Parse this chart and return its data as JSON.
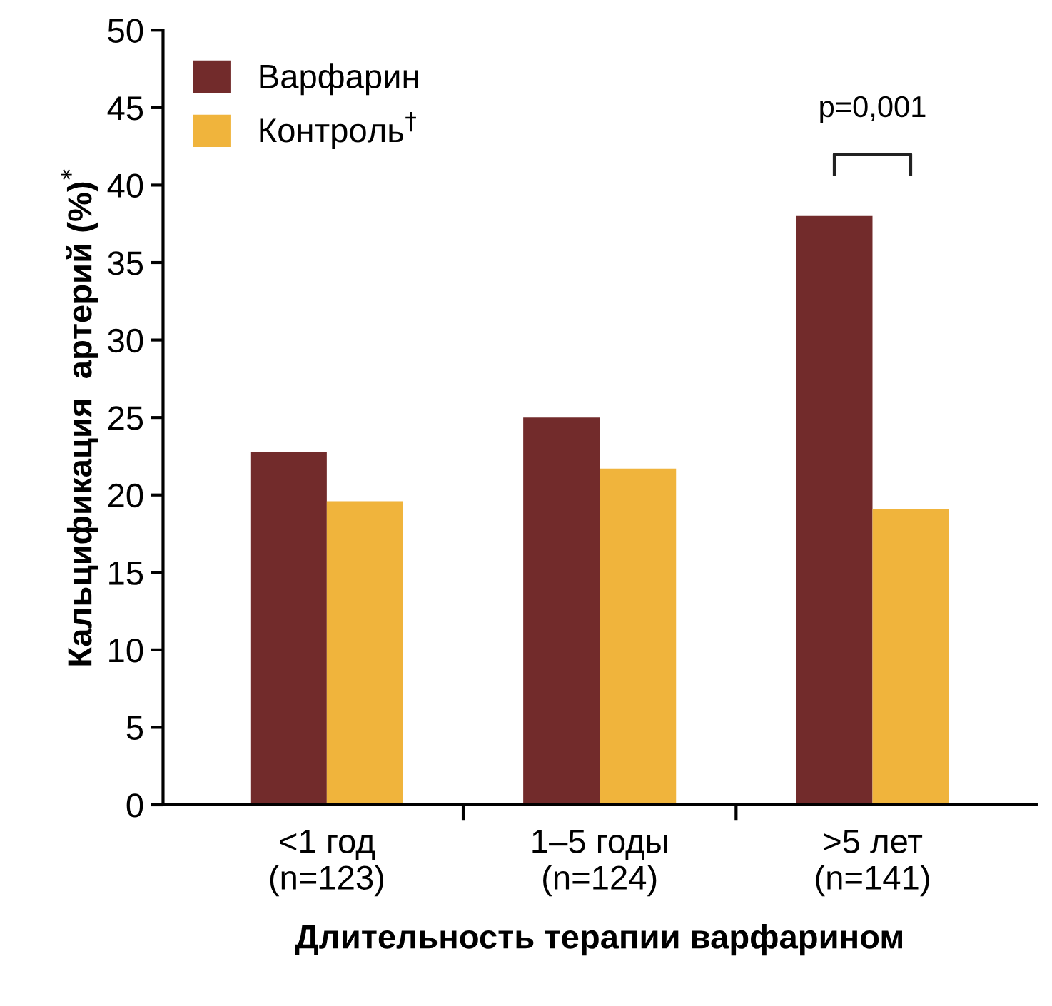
{
  "chart_data": {
    "type": "bar",
    "xlabel": "Длительность терапии варфарином",
    "ylabel": "Кальцификация  артерий (%)$^{*}$",
    "categories": [
      "<1 год\n(n=123)",
      "1–5 годы\n(n=124)",
      ">5 лет\n(n=141)"
    ],
    "series": [
      {
        "name": "Варфарин",
        "color": "#722b2b",
        "values": [
          22.8,
          25,
          38
        ]
      },
      {
        "name": "Контроль$^{†}$",
        "color": "#f0b43c",
        "values": [
          19.6,
          21.7,
          19.1
        ]
      }
    ],
    "ylim": [
      0,
      50
    ],
    "yticks": [
      0,
      5,
      10,
      15,
      20,
      25,
      30,
      35,
      40,
      45,
      50
    ],
    "legend": "top left",
    "grid": false,
    "annotations": [
      "p=0,001"
    ]
  }
}
